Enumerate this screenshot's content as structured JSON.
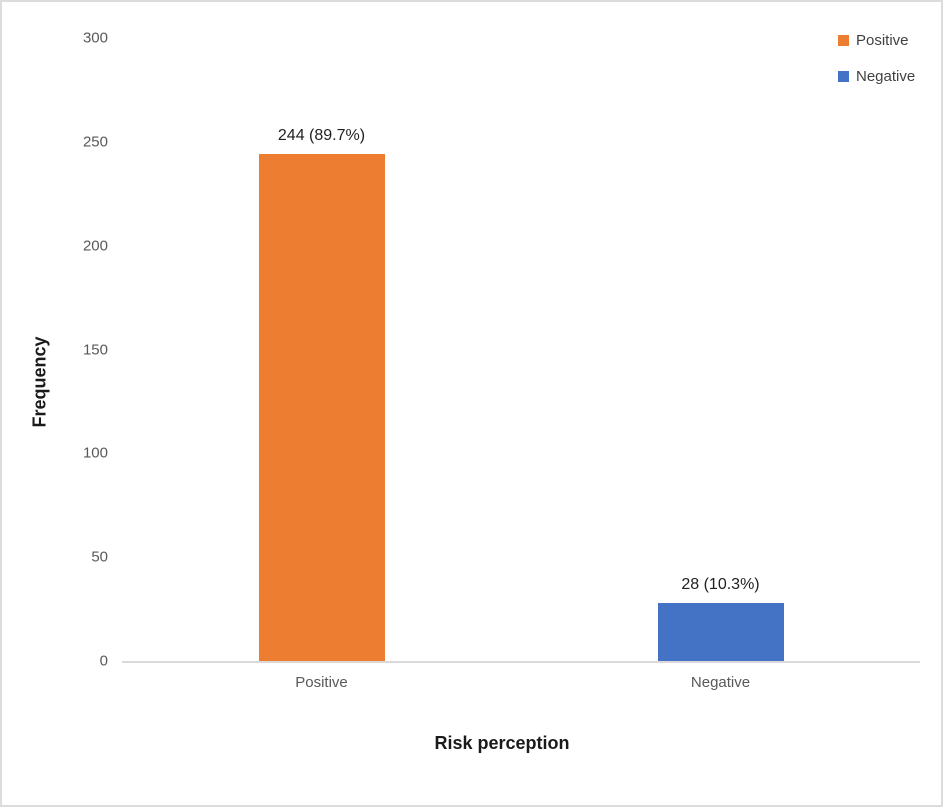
{
  "chart_data": {
    "type": "bar",
    "title": "",
    "xlabel": "Risk perception",
    "ylabel": "Frequency",
    "categories": [
      "Positive",
      "Negative"
    ],
    "values": [
      244,
      28
    ],
    "bar_labels": [
      "244 (89.7%)",
      "28 (10.3%)"
    ],
    "colors": [
      "#ED7D31",
      "#4472C4"
    ],
    "yticks": [
      0,
      50,
      100,
      150,
      200,
      250,
      300
    ],
    "ylim": [
      0,
      300
    ],
    "grid": false,
    "legend": {
      "position": "top-right",
      "entries": [
        {
          "label": "Positive",
          "color": "#ED7D31"
        },
        {
          "label": "Negative",
          "color": "#4472C4"
        }
      ]
    }
  },
  "frame": {
    "background": "#FFFFFF",
    "border_color": "#DCDCDC",
    "axis_line_color": "#D9D9D9",
    "tick_text_color": "#595959",
    "data_label_color": "#1F1F1F"
  }
}
